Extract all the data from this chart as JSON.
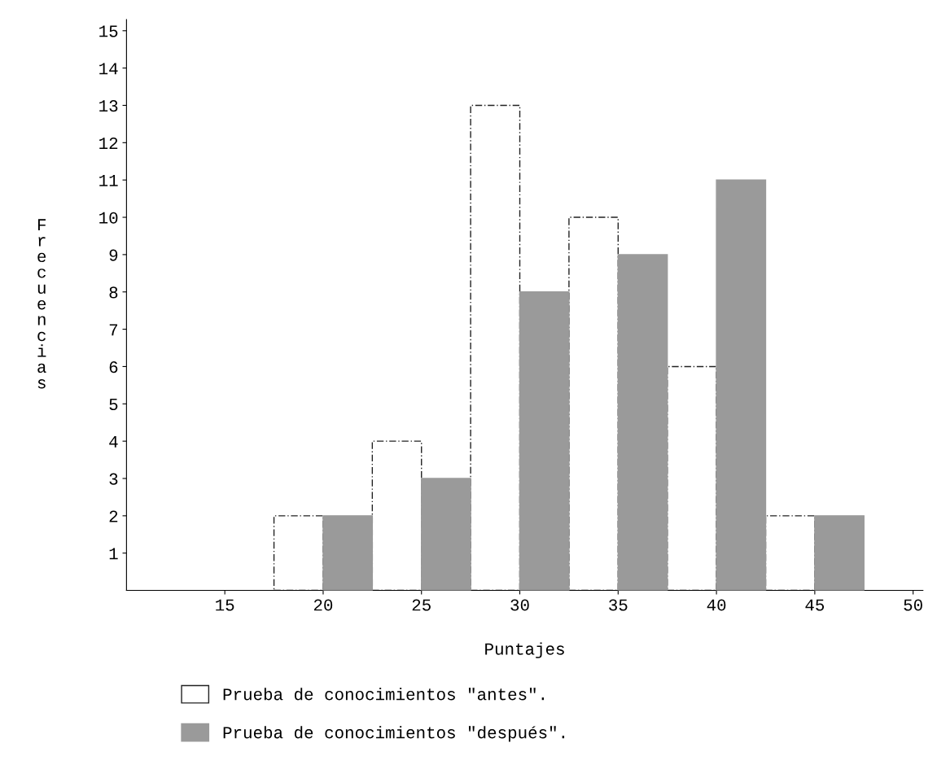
{
  "chart_data": {
    "type": "bar",
    "xlabel": "Puntajes",
    "ylabel": "Frecuencias",
    "x": [
      20,
      25,
      30,
      35,
      40,
      45
    ],
    "series": [
      {
        "name": "Prueba de conocimientos \"antes\".",
        "color": "#ffffff",
        "values": [
          2,
          4,
          13,
          10,
          6,
          2
        ]
      },
      {
        "name": "Prueba de conocimientos \"después\".",
        "color": "#9a9a9a",
        "values": [
          2,
          3,
          8,
          9,
          11,
          2
        ]
      }
    ],
    "xlim": [
      10,
      50.5
    ],
    "xticks": [
      15,
      20,
      25,
      30,
      35,
      40,
      45,
      50
    ],
    "ylim": [
      0,
      15.3
    ],
    "yticks": [
      1,
      2,
      3,
      4,
      5,
      6,
      7,
      8,
      9,
      10,
      11,
      12,
      13,
      14,
      15
    ],
    "grid": false,
    "legend": "bottom"
  }
}
